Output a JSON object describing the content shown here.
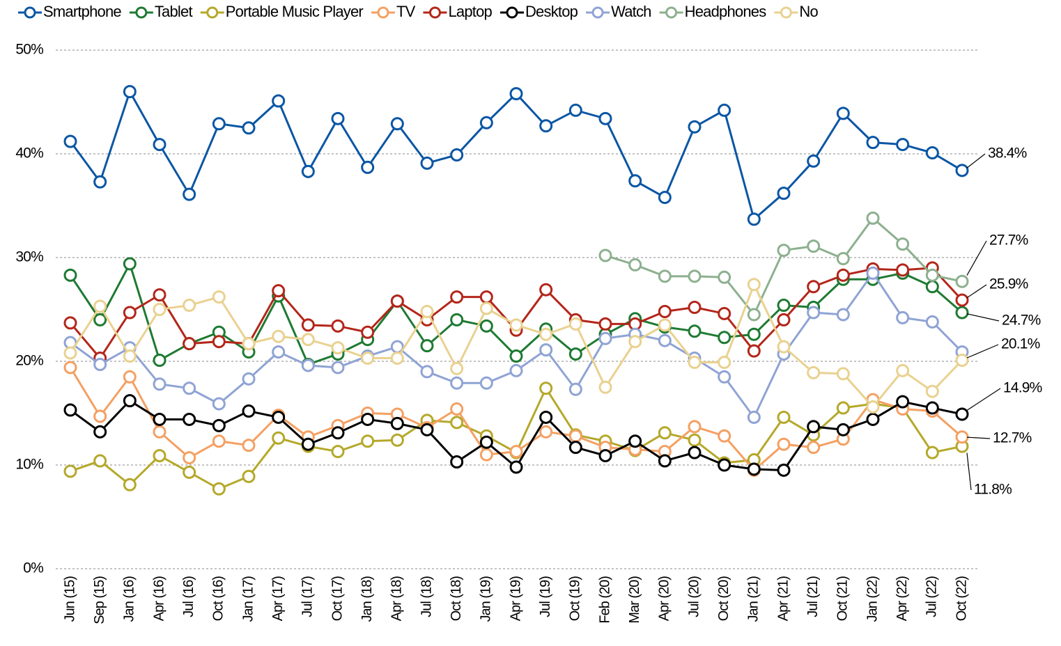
{
  "chart_data": {
    "type": "line",
    "categories": [
      "Jun (15)",
      "Sep (15)",
      "Jan (16)",
      "Apr (16)",
      "Jul (16)",
      "Oct (16)",
      "Jan (17)",
      "Apr (17)",
      "Jul (17)",
      "Oct (17)",
      "Jan (18)",
      "Apr (18)",
      "Jul (18)",
      "Oct (18)",
      "Jan (19)",
      "Apr (19)",
      "Jul (19)",
      "Oct (19)",
      "Feb (20)",
      "Mar (20)",
      "Apr (20)",
      "Jul (20)",
      "Oct (20)",
      "Jan (21)",
      "Apr (21)",
      "Jul (21)",
      "Oct (21)",
      "Jan (22)",
      "Apr (22)",
      "Jul (22)",
      "Oct (22)"
    ],
    "ylim": [
      0,
      50
    ],
    "yticks": [
      {
        "value": 0,
        "label": "0%"
      },
      {
        "value": 10,
        "label": "10%"
      },
      {
        "value": 20,
        "label": "20%"
      },
      {
        "value": 30,
        "label": "30%"
      },
      {
        "value": 40,
        "label": "40%"
      },
      {
        "value": 50,
        "label": "50%"
      }
    ],
    "grid": true,
    "legend": "top",
    "series": [
      {
        "name": "Smartphone",
        "color": "#0b56a4",
        "values": [
          41.2,
          37.3,
          46.0,
          40.9,
          36.1,
          42.9,
          42.5,
          45.1,
          38.3,
          43.4,
          38.7,
          42.9,
          39.1,
          39.9,
          43.0,
          45.8,
          42.7,
          44.2,
          43.4,
          37.4,
          35.8,
          42.6,
          44.2,
          33.7,
          36.2,
          39.3,
          43.9,
          41.1,
          40.9,
          40.1,
          38.4
        ],
        "value_labels": [
          null,
          null,
          null,
          null,
          null,
          null,
          null,
          null,
          null,
          null,
          null,
          null,
          null,
          null,
          null,
          null,
          null,
          null,
          null,
          null,
          null,
          null,
          null,
          null,
          null,
          null,
          null,
          null,
          null,
          null,
          "38.4%"
        ]
      },
      {
        "name": "Tablet",
        "color": "#1e7a32",
        "values": [
          28.3,
          24.0,
          29.4,
          20.1,
          21.7,
          22.8,
          20.9,
          26.3,
          19.7,
          20.7,
          22.1,
          25.8,
          21.5,
          24.0,
          23.4,
          20.5,
          23.1,
          20.7,
          22.6,
          24.1,
          23.3,
          22.9,
          22.3,
          22.6,
          25.4,
          25.2,
          27.9,
          27.9,
          28.5,
          27.2,
          24.7
        ],
        "value_labels": [
          null,
          null,
          null,
          null,
          null,
          null,
          null,
          null,
          null,
          null,
          null,
          null,
          null,
          null,
          null,
          null,
          null,
          null,
          null,
          null,
          null,
          null,
          null,
          null,
          null,
          null,
          null,
          null,
          null,
          null,
          "24.7%"
        ]
      },
      {
        "name": "Portable Music Player",
        "color": "#b5a82a",
        "values": [
          9.4,
          10.4,
          8.1,
          10.9,
          9.3,
          7.7,
          8.9,
          12.6,
          11.8,
          11.3,
          12.3,
          12.4,
          14.3,
          14.1,
          12.8,
          11.2,
          17.4,
          12.9,
          12.3,
          11.4,
          13.1,
          12.4,
          10.2,
          10.5,
          14.6,
          12.9,
          15.5,
          15.9,
          15.5,
          11.2,
          11.8
        ],
        "value_labels": [
          null,
          null,
          null,
          null,
          null,
          null,
          null,
          null,
          null,
          null,
          null,
          null,
          null,
          null,
          null,
          null,
          null,
          null,
          null,
          null,
          null,
          null,
          null,
          null,
          null,
          null,
          null,
          null,
          null,
          null,
          "11.8%"
        ]
      },
      {
        "name": "TV",
        "color": "#f4a063",
        "values": [
          19.4,
          14.7,
          18.5,
          13.2,
          10.7,
          12.3,
          11.9,
          14.8,
          12.7,
          13.8,
          15.0,
          14.9,
          13.6,
          15.4,
          11.0,
          11.3,
          13.2,
          12.8,
          11.7,
          11.5,
          11.3,
          13.7,
          12.8,
          9.5,
          12.0,
          11.7,
          12.5,
          16.3,
          15.4,
          15.2,
          12.7
        ],
        "value_labels": [
          null,
          null,
          null,
          null,
          null,
          null,
          null,
          null,
          null,
          null,
          null,
          null,
          null,
          null,
          null,
          null,
          null,
          null,
          null,
          null,
          null,
          null,
          null,
          null,
          null,
          null,
          null,
          null,
          null,
          null,
          "12.7%"
        ]
      },
      {
        "name": "Laptop",
        "color": "#b3261a",
        "values": [
          23.7,
          20.3,
          24.7,
          26.4,
          21.7,
          21.9,
          21.7,
          26.8,
          23.5,
          23.4,
          22.8,
          25.8,
          24.0,
          26.2,
          26.2,
          23.0,
          26.9,
          24.0,
          23.6,
          23.6,
          24.8,
          25.2,
          24.6,
          21.0,
          24.0,
          27.2,
          28.3,
          28.9,
          28.8,
          29.0,
          25.9
        ],
        "value_labels": [
          null,
          null,
          null,
          null,
          null,
          null,
          null,
          null,
          null,
          null,
          null,
          null,
          null,
          null,
          null,
          null,
          null,
          null,
          null,
          null,
          null,
          null,
          null,
          null,
          null,
          null,
          null,
          null,
          null,
          null,
          "25.9%"
        ]
      },
      {
        "name": "Desktop",
        "color": "#000000",
        "values": [
          15.3,
          13.2,
          16.2,
          14.4,
          14.4,
          13.8,
          15.2,
          14.6,
          12.0,
          13.1,
          14.4,
          14.0,
          13.4,
          10.3,
          12.2,
          9.8,
          14.6,
          11.7,
          10.9,
          12.3,
          10.4,
          11.2,
          10.0,
          9.6,
          9.5,
          13.7,
          13.4,
          14.4,
          16.1,
          15.5,
          14.9
        ],
        "value_labels": [
          null,
          null,
          null,
          null,
          null,
          null,
          null,
          null,
          null,
          null,
          null,
          null,
          null,
          null,
          null,
          null,
          null,
          null,
          null,
          null,
          null,
          null,
          null,
          null,
          null,
          null,
          null,
          null,
          null,
          null,
          "14.9%"
        ]
      },
      {
        "name": "Watch",
        "color": "#8fa3d4",
        "values": [
          21.8,
          19.7,
          21.3,
          17.8,
          17.4,
          15.9,
          18.3,
          20.9,
          19.6,
          19.4,
          20.5,
          21.4,
          19.0,
          17.9,
          17.9,
          19.1,
          21.1,
          17.3,
          22.2,
          22.6,
          22.0,
          20.3,
          18.5,
          14.6,
          20.7,
          24.7,
          24.5,
          28.5,
          24.2,
          23.8,
          20.9
        ]
      },
      {
        "name": "Headphones",
        "color": "#8db08f",
        "values": [
          null,
          null,
          null,
          null,
          null,
          null,
          null,
          null,
          null,
          null,
          null,
          null,
          null,
          null,
          null,
          null,
          null,
          null,
          30.2,
          29.3,
          28.2,
          28.2,
          28.1,
          24.5,
          30.7,
          31.1,
          29.9,
          33.8,
          31.3,
          28.3,
          27.7
        ],
        "value_labels": [
          null,
          null,
          null,
          null,
          null,
          null,
          null,
          null,
          null,
          null,
          null,
          null,
          null,
          null,
          null,
          null,
          null,
          null,
          null,
          null,
          null,
          null,
          null,
          null,
          null,
          null,
          null,
          null,
          null,
          null,
          "27.7%"
        ]
      },
      {
        "name": "No",
        "color": "#e9d190",
        "values": [
          20.8,
          25.3,
          20.5,
          25.0,
          25.4,
          26.2,
          21.7,
          22.4,
          22.1,
          21.3,
          20.3,
          20.3,
          24.8,
          19.3,
          25.1,
          23.5,
          22.6,
          23.6,
          17.5,
          21.9,
          23.5,
          19.9,
          19.9,
          27.4,
          21.4,
          18.9,
          18.8,
          15.6,
          19.1,
          17.1,
          20.1
        ],
        "value_labels": [
          null,
          null,
          null,
          null,
          null,
          null,
          null,
          null,
          null,
          null,
          null,
          null,
          null,
          null,
          null,
          null,
          null,
          null,
          null,
          null,
          null,
          null,
          null,
          null,
          null,
          null,
          null,
          null,
          null,
          null,
          "20.1%"
        ]
      }
    ]
  }
}
